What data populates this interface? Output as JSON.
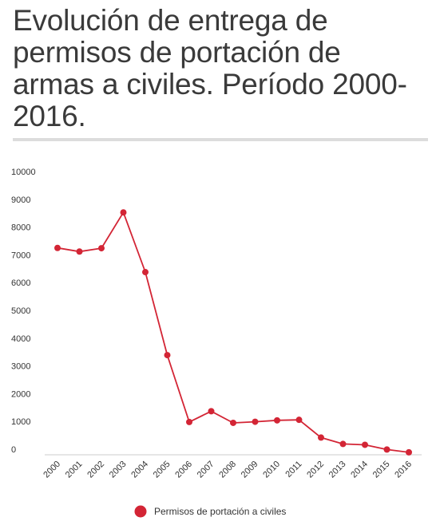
{
  "header": {
    "title": "Evolución de entrega de permisos de portación de armas a civiles. Período 2000-2016."
  },
  "colors": {
    "series": "#d32535",
    "axis": "#cccccc",
    "title": "#3a3a3a",
    "rule": "#dcdcdc"
  },
  "chart_data": {
    "type": "line",
    "title": "Evolución de entrega de permisos de portación de armas a civiles. Período 2000-2016.",
    "xlabel": "",
    "ylabel": "",
    "x": [
      "2000",
      "2001",
      "2002",
      "2003",
      "2004",
      "2005",
      "2006",
      "2007",
      "2008",
      "2009",
      "2010",
      "2011",
      "2012",
      "2013",
      "2014",
      "2015",
      "2016"
    ],
    "y_ticks": [
      "0",
      "1000",
      "2000",
      "3000",
      "4000",
      "5000",
      "6000",
      "7000",
      "8000",
      "9000",
      "10000"
    ],
    "ylim": [
      0,
      10000
    ],
    "grid": false,
    "legend_position": "bottom",
    "series": [
      {
        "name": "Permisos de portación a civiles",
        "values": [
          7450,
          7320,
          7440,
          8730,
          6580,
          3590,
          1180,
          1570,
          1150,
          1190,
          1240,
          1260,
          620,
          390,
          360,
          190,
          90
        ]
      }
    ]
  }
}
